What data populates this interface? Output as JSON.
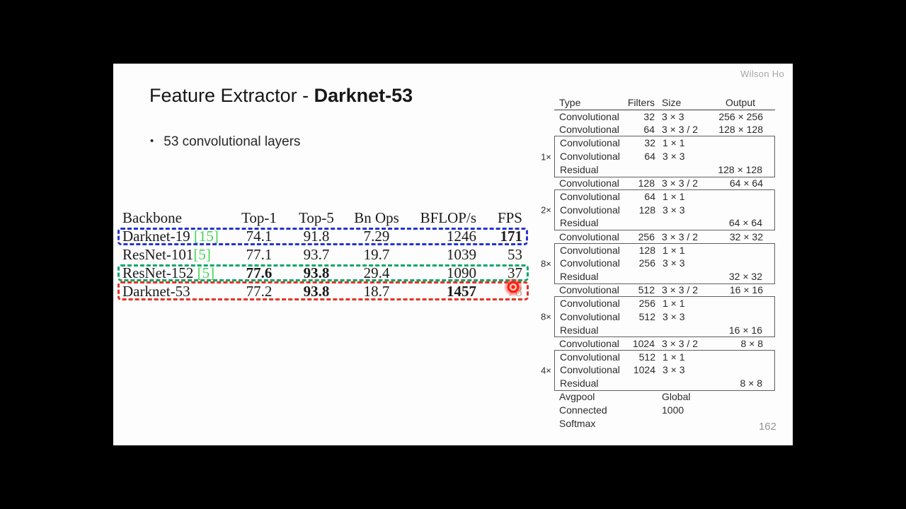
{
  "slide": {
    "watermark": "Wilson Ho",
    "page_number": "162",
    "title": {
      "regular": "Feature Extractor - ",
      "bold": "Darknet-53"
    },
    "bullet": {
      "glyph": "•",
      "text": "53 convolutional layers"
    }
  },
  "colors": {
    "highlight_blue": "#2633cf",
    "highlight_green": "#0ba56c",
    "highlight_red": "#e33226",
    "citation_green": "#43d654",
    "laser_red": "#ff2012"
  },
  "benchmark_table": {
    "headers": [
      "Backbone",
      "Top-1",
      "Top-5",
      "Bn Ops",
      "BFLOP/s",
      "FPS"
    ],
    "rows": [
      {
        "backbone": "Darknet-19 ",
        "citation": "[15]",
        "values": [
          "74.1",
          "91.8",
          "7.29",
          "1246",
          "171"
        ],
        "bold": [
          false,
          false,
          false,
          false,
          true
        ],
        "dim": [
          false,
          false,
          false,
          false,
          false
        ],
        "highlight": "blue"
      },
      {
        "backbone": "ResNet-101",
        "citation": "[5]",
        "values": [
          "77.1",
          "93.7",
          "19.7",
          "1039",
          "53"
        ],
        "bold": [
          false,
          false,
          false,
          false,
          false
        ],
        "dim": [
          false,
          false,
          false,
          false,
          false
        ],
        "highlight": null
      },
      {
        "backbone": "ResNet-152 ",
        "citation": "[5]",
        "values": [
          "77.6",
          "93.8",
          "29.4",
          "1090",
          "37"
        ],
        "bold": [
          true,
          true,
          false,
          false,
          false
        ],
        "dim": [
          false,
          false,
          false,
          false,
          false
        ],
        "highlight": "green"
      },
      {
        "backbone": "Darknet-53",
        "citation": "",
        "values": [
          "77.2",
          "93.8",
          "18.7",
          "1457",
          "78"
        ],
        "bold": [
          false,
          true,
          false,
          true,
          false
        ],
        "dim": [
          false,
          false,
          false,
          false,
          true
        ],
        "highlight": "red"
      }
    ]
  },
  "architecture_table": {
    "headers": [
      "Type",
      "Filters",
      "Size",
      "Output"
    ],
    "segments": [
      {
        "kind": "row",
        "cells": [
          "Convolutional",
          "32",
          "3 × 3",
          "256 × 256"
        ]
      },
      {
        "kind": "row",
        "cells": [
          "Convolutional",
          "64",
          "3 × 3 / 2",
          "128 × 128"
        ]
      },
      {
        "kind": "group",
        "label": "1×",
        "rows": [
          [
            "Convolutional",
            "32",
            "1 × 1",
            ""
          ],
          [
            "Convolutional",
            "64",
            "3 × 3",
            ""
          ],
          [
            "Residual",
            "",
            "",
            "128 × 128"
          ]
        ]
      },
      {
        "kind": "row",
        "cells": [
          "Convolutional",
          "128",
          "3 × 3 / 2",
          "64 × 64"
        ]
      },
      {
        "kind": "group",
        "label": "2×",
        "rows": [
          [
            "Convolutional",
            "64",
            "1 × 1",
            ""
          ],
          [
            "Convolutional",
            "128",
            "3 × 3",
            ""
          ],
          [
            "Residual",
            "",
            "",
            "64 × 64"
          ]
        ]
      },
      {
        "kind": "row",
        "cells": [
          "Convolutional",
          "256",
          "3 × 3 / 2",
          "32 × 32"
        ]
      },
      {
        "kind": "group",
        "label": "8×",
        "rows": [
          [
            "Convolutional",
            "128",
            "1 × 1",
            ""
          ],
          [
            "Convolutional",
            "256",
            "3 × 3",
            ""
          ],
          [
            "Residual",
            "",
            "",
            "32 × 32"
          ]
        ]
      },
      {
        "kind": "row",
        "cells": [
          "Convolutional",
          "512",
          "3 × 3 / 2",
          "16 × 16"
        ]
      },
      {
        "kind": "group",
        "label": "8×",
        "rows": [
          [
            "Convolutional",
            "256",
            "1 × 1",
            ""
          ],
          [
            "Convolutional",
            "512",
            "3 × 3",
            ""
          ],
          [
            "Residual",
            "",
            "",
            "16 × 16"
          ]
        ]
      },
      {
        "kind": "row",
        "cells": [
          "Convolutional",
          "1024",
          "3 × 3 / 2",
          "8 × 8"
        ]
      },
      {
        "kind": "group",
        "label": "4×",
        "rows": [
          [
            "Convolutional",
            "512",
            "1 × 1",
            ""
          ],
          [
            "Convolutional",
            "1024",
            "3 × 3",
            ""
          ],
          [
            "Residual",
            "",
            "",
            "8 × 8"
          ]
        ]
      },
      {
        "kind": "row",
        "cells": [
          "Avgpool",
          "",
          "Global",
          ""
        ]
      },
      {
        "kind": "row",
        "cells": [
          "Connected",
          "",
          "1000",
          ""
        ]
      },
      {
        "kind": "row",
        "cells": [
          "Softmax",
          "",
          "",
          ""
        ]
      }
    ]
  }
}
